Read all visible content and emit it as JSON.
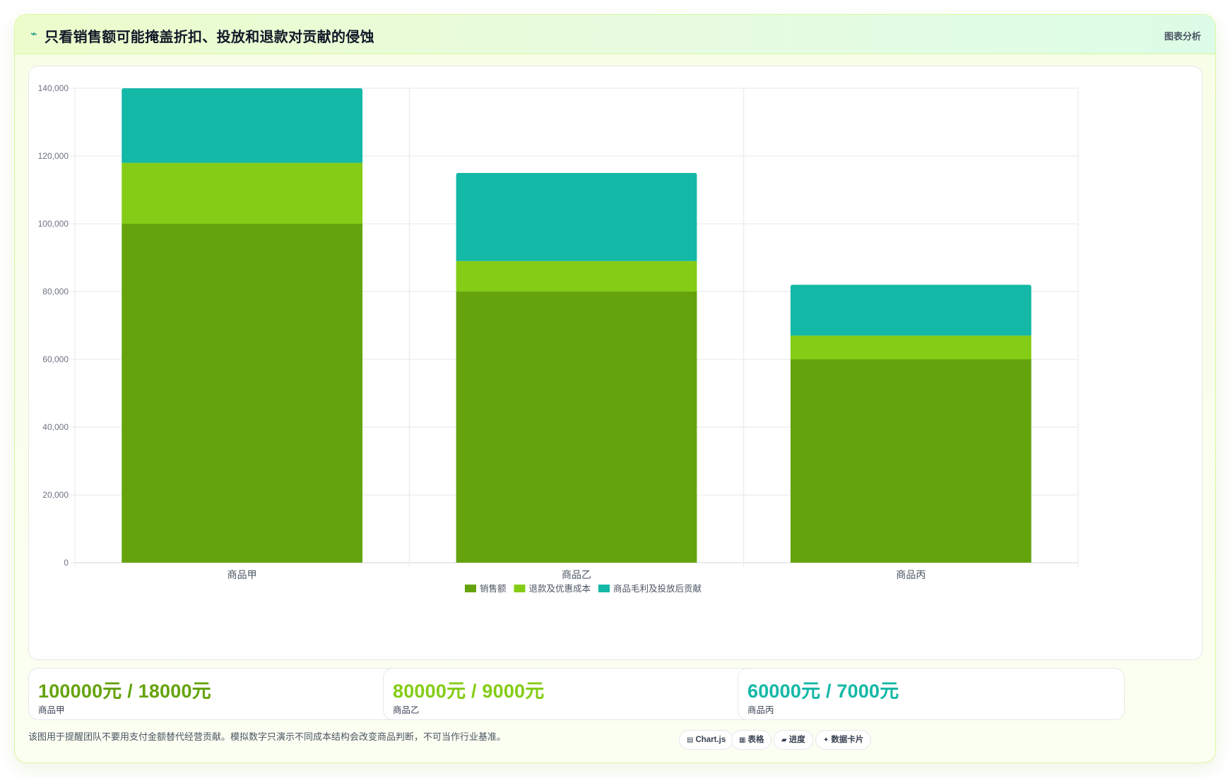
{
  "header": {
    "icon": "⌁",
    "title": "只看销售额可能掩盖折扣、投放和退款对贡献的侵蚀",
    "tag": "图表分析"
  },
  "chart_data": {
    "type": "bar",
    "stacked": true,
    "categories": [
      "商品甲",
      "商品乙",
      "商品丙"
    ],
    "series": [
      {
        "name": "销售额",
        "color": "#65a30d",
        "values": [
          100000,
          80000,
          60000
        ]
      },
      {
        "name": "退款及优惠成本",
        "color": "#84cc16",
        "values": [
          18000,
          9000,
          7000
        ]
      },
      {
        "name": "商品毛利及投放后贡献",
        "color": "#14b8a6",
        "values": [
          22000,
          26000,
          15000
        ]
      }
    ],
    "ylim": [
      0,
      140000
    ],
    "yticks": [
      "0",
      "20,000",
      "40,000",
      "60,000",
      "80,000",
      "100,000",
      "120,000",
      "140,000"
    ],
    "ytick_values": [
      0,
      20000,
      40000,
      60000,
      80000,
      100000,
      120000,
      140000
    ],
    "grid": true,
    "legend": "bottom"
  },
  "stats": [
    {
      "value": "100000元 / 18000元",
      "label": "商品甲",
      "color": "#65a30d"
    },
    {
      "value": "80000元 / 9000元",
      "label": "商品乙",
      "color": "#84cc16"
    },
    {
      "value": "60000元 / 7000元",
      "label": "商品丙",
      "color": "#14b8a6"
    }
  ],
  "footer": {
    "note": "该图用于提醒团队不要用支付金额替代经营贡献。模拟数字只演示不同成本结构会改变商品判断，不可当作行业基准。",
    "chips": [
      {
        "icon": "▤",
        "label": "Chart.js"
      },
      {
        "icon": "▦",
        "label": "表格"
      },
      {
        "icon": "▰",
        "label": "进度"
      },
      {
        "icon": "✦",
        "label": "数据卡片"
      }
    ]
  }
}
